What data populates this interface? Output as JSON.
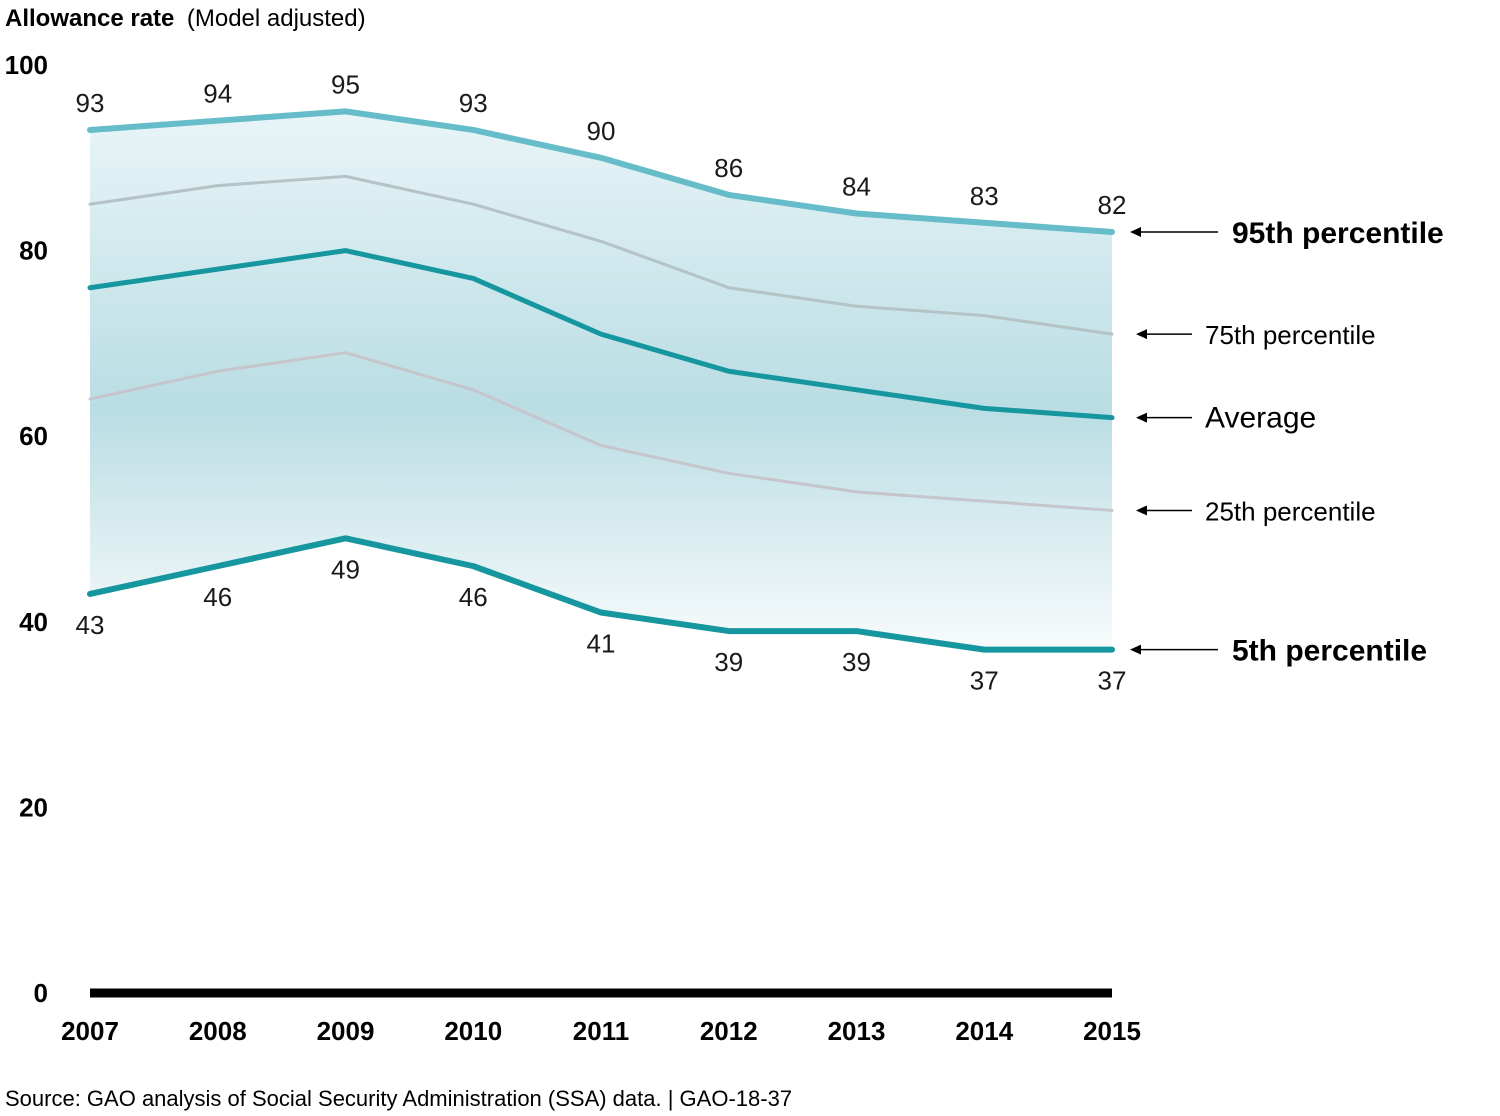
{
  "chart_data": {
    "type": "line",
    "title": "Allowance rate",
    "subtitle": "(Model adjusted)",
    "source": "Source: GAO analysis of Social Security Administration (SSA) data.  |  GAO-18-37",
    "x": [
      "2007",
      "2008",
      "2009",
      "2010",
      "2011",
      "2012",
      "2013",
      "2014",
      "2015"
    ],
    "ylim": [
      0,
      100
    ],
    "yticks": [
      "0",
      "20",
      "40",
      "60",
      "80",
      "100"
    ],
    "grid": false,
    "shaded_band": "between 5th and 95th percentile",
    "series": [
      {
        "name": "95th percentile",
        "values": [
          93,
          94,
          95,
          93,
          90,
          86,
          84,
          83,
          82
        ],
        "labels": [
          "93",
          "94",
          "95",
          "93",
          "90",
          "86",
          "84",
          "83",
          "82"
        ],
        "color": "#66bcc8",
        "emphasis": "bold"
      },
      {
        "name": "75th percentile",
        "values": [
          85,
          87,
          88,
          85,
          81,
          76,
          74,
          73,
          71
        ],
        "color": "#b5c2c6",
        "emphasis": "small"
      },
      {
        "name": "Average",
        "values": [
          76,
          78,
          80,
          77,
          71,
          67,
          65,
          63,
          62
        ],
        "color": "#16969f",
        "emphasis": "medium"
      },
      {
        "name": "25th percentile",
        "values": [
          64,
          67,
          69,
          65,
          59,
          56,
          54,
          53,
          52
        ],
        "color": "#c5c5cb",
        "emphasis": "small"
      },
      {
        "name": "5th percentile",
        "values": [
          43,
          46,
          49,
          46,
          41,
          39,
          39,
          37,
          37
        ],
        "labels": [
          "43",
          "46",
          "49",
          "46",
          "41",
          "39",
          "39",
          "37",
          "37"
        ],
        "color": "#16969f",
        "emphasis": "bold"
      }
    ]
  }
}
